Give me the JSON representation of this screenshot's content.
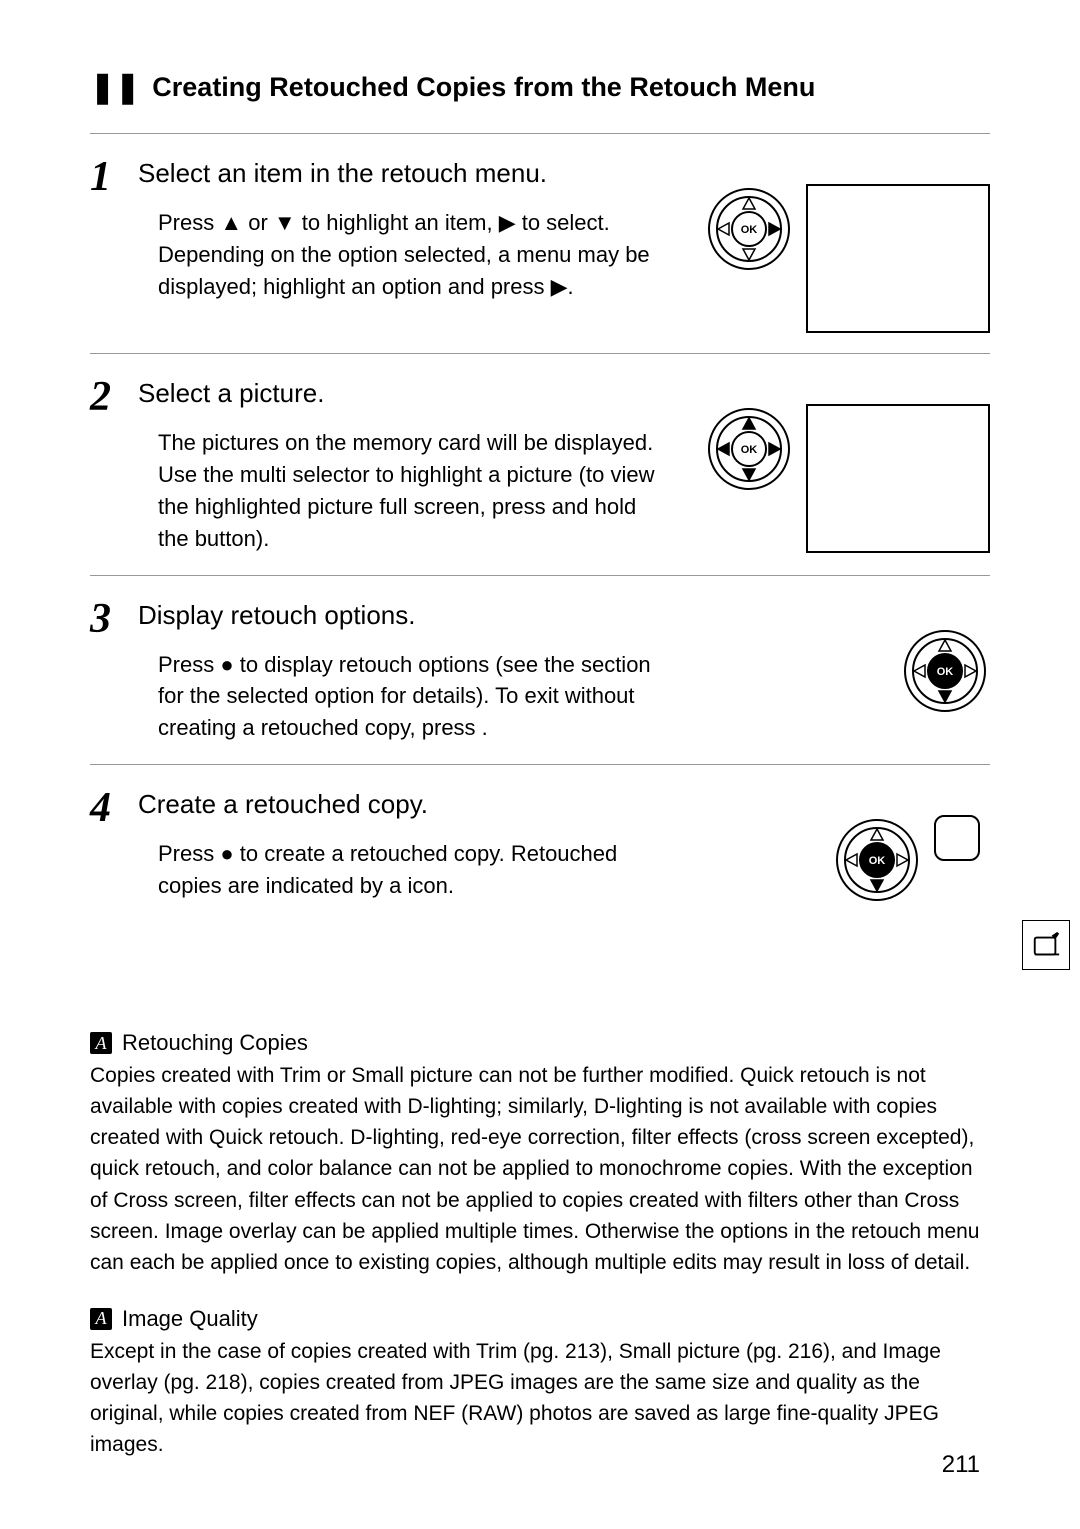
{
  "heading_marker": "❚❚",
  "heading_text": "Creating Retouched Copies from the Retouch Menu",
  "steps": [
    {
      "num": "1",
      "title": "Select an item in the retouch menu.",
      "desc": "Press ▲ or ▼ to highlight an item, ▶ to select. Depending on the option selected, a menu may be displayed; highlight an option and press ▶.",
      "pad_variant": "right",
      "has_screen": true
    },
    {
      "num": "2",
      "title": "Select a picture.",
      "desc": "The pictures on the memory card will be displayed.  Use the multi selector to highlight a picture (to view the highlighted picture full screen, press and hold the     button).",
      "pad_variant": "all",
      "has_screen": true
    },
    {
      "num": "3",
      "title": "Display retouch options.",
      "desc": "Press ● to display retouch options (see the section for the selected option for details).  To exit without creating a retouched copy, press     .",
      "pad_variant": "center_down",
      "has_screen": false
    },
    {
      "num": "4",
      "title": "Create a retouched copy.",
      "desc": "Press ● to create a retouched copy.  Retouched copies are indicated by a     icon.",
      "pad_variant": "center_down",
      "has_screen": false,
      "extra_icon": true
    }
  ],
  "notes": [
    {
      "title": "Retouching Copies",
      "body": "Copies created with Trim or Small picture can not be further modified.  Quick retouch is not available with copies created with D-lighting; similarly, D-lighting  is not available with copies created with Quick retouch.  D-lighting, red-eye correction, filter effects (cross screen excepted), quick retouch, and color balance can not be applied to monochrome copies.  With the exception of Cross screen, filter effects can not be applied to copies created with filters other than Cross screen. Image overlay can be applied multiple times.  Otherwise the options in the retouch menu can each be applied once to existing copies, although multiple edits may result in loss of detail."
    },
    {
      "title": "Image Quality",
      "body": "Except in the case of copies created with Trim (pg. 213), Small picture (pg. 216), and Image overlay (pg. 218), copies created from JPEG images are the same size and quality as the original, while copies created from NEF (RAW) photos are saved as large fine-quality JPEG images."
    }
  ],
  "page_number": "211"
}
